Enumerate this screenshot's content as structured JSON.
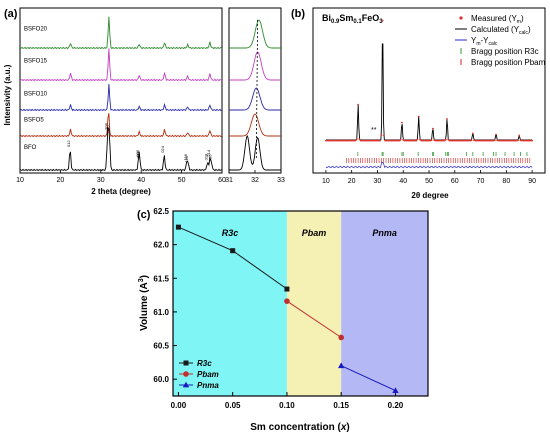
{
  "chart_data": [
    {
      "panel_label": "(a)",
      "type": "line",
      "xlabel": "2 theta (degree)",
      "ylabel": "Intensivity (a.u.)",
      "xlim": [
        10,
        60
      ],
      "xticks": [
        10,
        20,
        30,
        40,
        50,
        60
      ],
      "inset_xlim": [
        31,
        33
      ],
      "inset_xticks": [
        31,
        32,
        33
      ],
      "series": [
        {
          "name": "BSFO20",
          "color": "#2e8b2e",
          "x": [
            22.5,
            32.0,
            39.5,
            45.8,
            51.5,
            57.0
          ],
          "y": [
            0.15,
            1.0,
            0.12,
            0.17,
            0.1,
            0.18
          ]
        },
        {
          "name": "BSFO15",
          "color": "#c040c0",
          "x": [
            22.5,
            32.0,
            39.5,
            45.8,
            51.5,
            57.0
          ],
          "y": [
            0.22,
            1.0,
            0.15,
            0.22,
            0.12,
            0.2
          ]
        },
        {
          "name": "BSFO10",
          "color": "#2a2aaa",
          "x": [
            22.5,
            32.0,
            39.5,
            45.8,
            51.5,
            57.0
          ],
          "y": [
            0.2,
            1.0,
            0.14,
            0.2,
            0.12,
            0.2
          ]
        },
        {
          "name": "BSFO5",
          "color": "#b03010",
          "x": [
            22.5,
            31.9,
            39.5,
            45.8,
            51.5,
            57.0
          ],
          "y": [
            0.25,
            1.0,
            0.16,
            0.25,
            0.14,
            0.22
          ]
        },
        {
          "name": "BFO",
          "color": "#000000",
          "x": [
            22.4,
            31.7,
            32.1,
            39.4,
            39.6,
            45.7,
            51.3,
            51.6,
            56.4,
            57.0,
            57.4
          ],
          "y": [
            0.55,
            1.0,
            0.95,
            0.3,
            0.25,
            0.4,
            0.2,
            0.15,
            0.2,
            0.3,
            0.18
          ]
        }
      ],
      "hkl_labels": [
        "012",
        "104",
        "110",
        "006",
        "202",
        "024",
        "116",
        "122",
        "018",
        "214",
        "300"
      ]
    },
    {
      "panel_label": "(b)",
      "type": "line",
      "title_main": "Bi",
      "title_sub1": "0.9",
      "title_mid": "Sm",
      "title_sub2": "0.1",
      "title_end": "FeO",
      "title_sub3": "3",
      "xlabel": "2θ degree",
      "xlim": [
        5,
        95
      ],
      "xticks": [
        10,
        20,
        30,
        40,
        50,
        60,
        70,
        80,
        90
      ],
      "legend_position": "top-right",
      "legend": [
        {
          "label": "Measured (Y",
          "sub": "m",
          "end": ")",
          "color": "#e0302a",
          "marker": "dot"
        },
        {
          "label": "Calculated (Y",
          "sub": "calc",
          "end": ")",
          "color": "#000000",
          "marker": "line"
        },
        {
          "label": "Y",
          "sub": "m",
          "end": "-Y",
          "sub2": "calc",
          "color": "#2a2ad0",
          "marker": "line"
        },
        {
          "label": "Bragg position R3c",
          "color": "#3a9a3a",
          "marker": "tick"
        },
        {
          "label": "Bragg position Pbam",
          "color": "#d02020",
          "marker": "tick"
        }
      ],
      "annotation": "**",
      "peaks": {
        "x": [
          22.5,
          32.0,
          39.5,
          46.0,
          51.5,
          57.0,
          67.0,
          76.0,
          85.0
        ],
        "y": [
          0.3,
          1.0,
          0.15,
          0.2,
          0.1,
          0.18,
          0.06,
          0.05,
          0.04
        ]
      },
      "bragg_r3c": [
        22.4,
        31.8,
        32.2,
        39.5,
        40.0,
        45.8,
        51.3,
        51.8,
        56.5,
        57.1,
        57.5,
        64.5,
        67.0,
        71.0,
        75.0,
        76.0,
        79.5,
        83.0,
        85.5,
        88.0
      ],
      "bragg_pbam_range": [
        18,
        90
      ]
    },
    {
      "panel_label": "(c)",
      "type": "scatter",
      "xlabel": "Sm concentration (x)",
      "xlabel_main": "Sm concentration (",
      "xlabel_var": "x",
      "xlabel_end": ")",
      "ylabel": "Volume (A³)",
      "ylabel_main": "Volume (A",
      "ylabel_sup": "3",
      "ylabel_end": ")",
      "xlim": [
        -0.005,
        0.23
      ],
      "ylim": [
        59.75,
        62.5
      ],
      "xticks": [
        "0.00",
        "0.05",
        "0.10",
        "0.15",
        "0.20"
      ],
      "yticks": [
        "60.0",
        "60.5",
        "61.0",
        "61.5",
        "62.0",
        "62.5"
      ],
      "regions": [
        {
          "label": "R3c",
          "from": -0.005,
          "to": 0.1,
          "color": "#7ff5f5"
        },
        {
          "label": "Pbam",
          "from": 0.1,
          "to": 0.15,
          "color": "#f5f0b4"
        },
        {
          "label": "Pnma",
          "from": 0.15,
          "to": 0.23,
          "color": "#b4b8f5"
        }
      ],
      "legend_position": "bottom-left",
      "series": [
        {
          "name": "R3c",
          "color": "#1a1a1a",
          "marker": "square",
          "x": [
            0.0,
            0.05,
            0.1
          ],
          "y": [
            62.26,
            61.91,
            61.34
          ]
        },
        {
          "name": "Pbam",
          "color": "#2a6a2a",
          "marker": "circle",
          "point_color": "#c03030",
          "x": [
            0.1,
            0.15
          ],
          "y": [
            61.16,
            60.62
          ]
        },
        {
          "name": "Pnma",
          "color": "#1a1ac0",
          "marker": "triangle",
          "x": [
            0.15,
            0.2
          ],
          "y": [
            60.2,
            59.83
          ]
        }
      ]
    }
  ]
}
